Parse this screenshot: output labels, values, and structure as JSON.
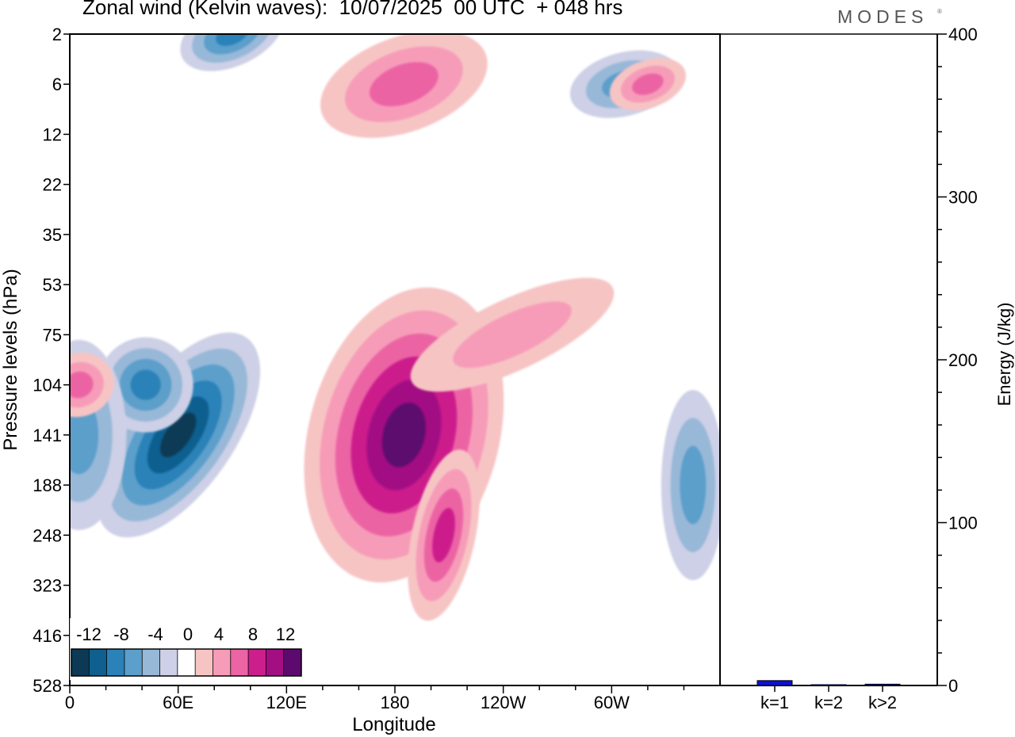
{
  "title": "Zonal wind (Kelvin waves):  10/07/2025  00 UTC  + 048 hrs",
  "brand": "MODES",
  "brand_mark": "®",
  "chart_data": [
    {
      "type": "heatmap",
      "title": "Zonal wind (Kelvin waves):  10/07/2025  00 UTC  + 048 hrs",
      "xlabel": "Longitude",
      "ylabel": "Pressure levels (hPa)",
      "x_tick_labels": [
        "0",
        "60E",
        "120E",
        "180",
        "120W",
        "60W"
      ],
      "y_tick_labels": [
        "2",
        "6",
        "12",
        "22",
        "35",
        "53",
        "75",
        "104",
        "141",
        "188",
        "248",
        "323",
        "416",
        "528"
      ],
      "colorbar": {
        "labels": [
          "-12",
          "-8",
          "-4",
          "0",
          "4",
          "8",
          "12"
        ],
        "levels": [
          -14,
          -12,
          -10,
          -8,
          -6,
          -4,
          -2,
          2,
          4,
          6,
          8,
          10,
          12,
          14
        ],
        "colors": [
          "#0c3a55",
          "#0f5f8f",
          "#2b82b8",
          "#5c9fcb",
          "#98b8d8",
          "#cdd0e6",
          "#ffffff",
          "#f7c4c4",
          "#f69cb8",
          "#ec64a4",
          "#cc1f8c",
          "#a30e83",
          "#5c0a6e"
        ]
      },
      "features": [
        {
          "lon": 60,
          "level": "141",
          "value": -13
        },
        {
          "lon": 42,
          "level": "104",
          "value": -9
        },
        {
          "lon": 5,
          "level": "141",
          "value": -7
        },
        {
          "lon": 90,
          "level": "2",
          "value": -9
        },
        {
          "lon": 185,
          "level": "141",
          "value": 13
        },
        {
          "lon": 207,
          "level": "248",
          "value": 9
        },
        {
          "lon": 185,
          "level": "6",
          "value": 7
        },
        {
          "lon": 5,
          "level": "104",
          "value": 7
        },
        {
          "lon": 245,
          "level": "75",
          "value": 5
        },
        {
          "lon": 345,
          "level": "188",
          "value": -7
        },
        {
          "lon": 307,
          "level": "6",
          "value": -7
        },
        {
          "lon": 320,
          "level": "6",
          "value": 7
        }
      ]
    },
    {
      "type": "bar",
      "categories": [
        "k=1",
        "k=2",
        "k>2"
      ],
      "values": [
        3,
        0.5,
        0.8
      ],
      "ylabel": "Energy (J/kg)",
      "ylim": [
        0,
        400
      ],
      "y_tick_labels": [
        "0",
        "100",
        "200",
        "300",
        "400"
      ],
      "bar_colors": [
        "#1010d8",
        "#1010d8",
        "#1010d8"
      ]
    }
  ]
}
